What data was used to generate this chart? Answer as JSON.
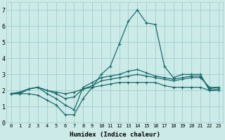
{
  "xlabel": "Humidex (Indice chaleur)",
  "xlim": [
    -0.5,
    23.5
  ],
  "ylim": [
    0,
    7.5
  ],
  "background_color": "#cceae8",
  "grid_color": "#a0cece",
  "line_color": "#1a6b6b",
  "series": [
    [
      1.8,
      1.8,
      1.8,
      1.7,
      1.4,
      1.1,
      0.5,
      0.5,
      1.5,
      2.2,
      3.0,
      3.5,
      4.9,
      6.3,
      7.0,
      6.2,
      6.1,
      3.5,
      2.8,
      3.0,
      3.0,
      3.0,
      2.0,
      2.1
    ],
    [
      1.8,
      1.8,
      2.1,
      2.2,
      1.8,
      1.5,
      1.1,
      0.8,
      2.2,
      2.5,
      2.8,
      2.9,
      3.0,
      3.2,
      3.3,
      3.1,
      2.9,
      2.8,
      2.7,
      2.8,
      2.9,
      2.9,
      2.1,
      2.2
    ],
    [
      1.8,
      1.9,
      2.1,
      2.2,
      2.0,
      1.8,
      1.5,
      1.6,
      2.1,
      2.3,
      2.6,
      2.7,
      2.8,
      2.9,
      3.0,
      2.9,
      2.8,
      2.7,
      2.6,
      2.7,
      2.8,
      2.8,
      2.2,
      2.2
    ],
    [
      1.8,
      1.9,
      2.1,
      2.2,
      2.0,
      1.9,
      1.8,
      1.9,
      2.1,
      2.2,
      2.3,
      2.4,
      2.5,
      2.5,
      2.5,
      2.5,
      2.5,
      2.3,
      2.2,
      2.2,
      2.2,
      2.2,
      2.0,
      2.0
    ]
  ]
}
